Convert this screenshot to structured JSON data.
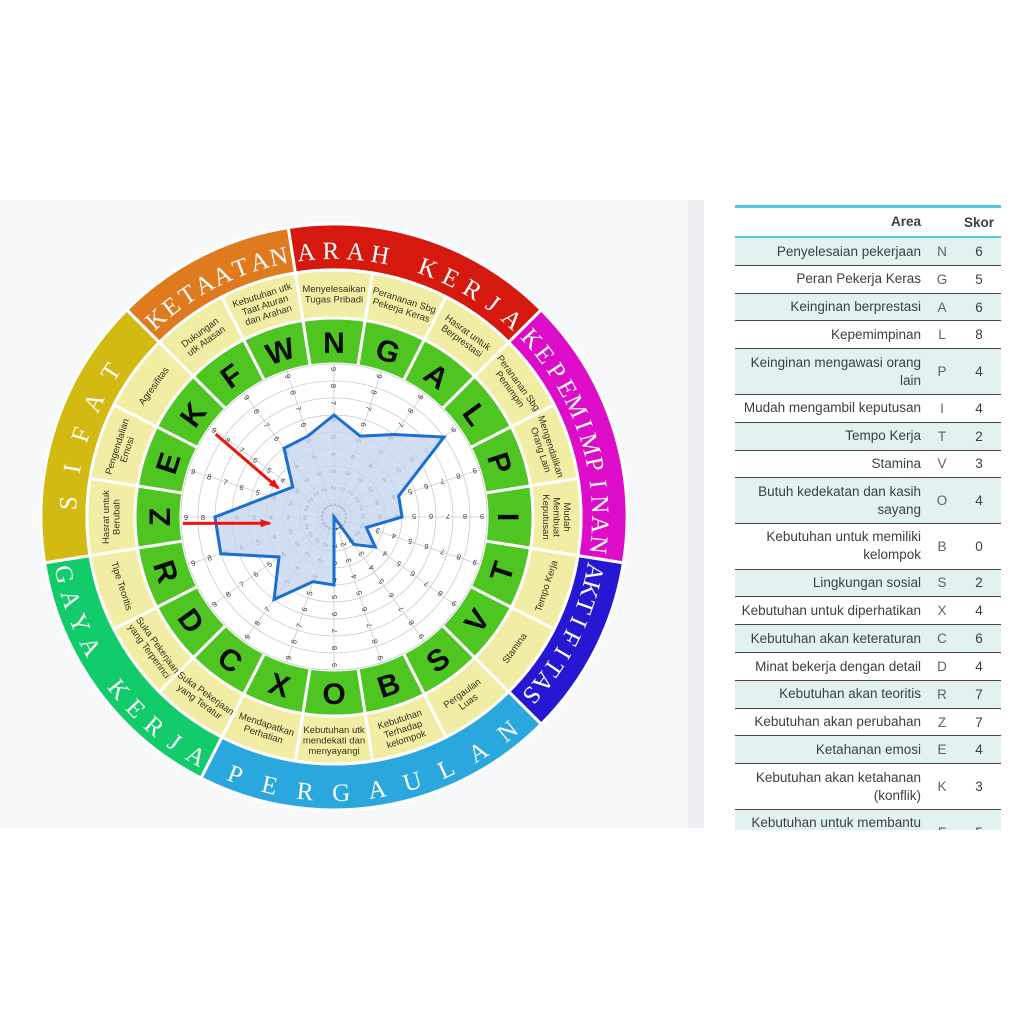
{
  "panel_colors": {
    "page_bg": "#ffffff",
    "left_panel_bg": "#F7F8FA",
    "divider_bg": "#EDEFF2",
    "right_panel_bg": "#ffffff"
  },
  "chart_data": {
    "type": "radar",
    "layout": "papi-kostick-wheel",
    "scale": [
      0,
      9
    ],
    "rings": [
      1,
      2,
      3,
      4,
      5,
      6,
      7,
      8,
      9
    ],
    "grid": true,
    "colors": {
      "polygon_stroke": "#1B6ED2",
      "polygon_fill": "rgba(197,214,240,0.78)",
      "grid_line": "#C7CCD4",
      "digit": "#3B3B3B",
      "label_cell": "#F1EDA4",
      "letter_cell": "#4FC522",
      "arrow": "#EE130B",
      "cell_gap": "#ffffff"
    },
    "groups": [
      {
        "name": "ARAH KERJA",
        "color": "#D6190E",
        "flip": false
      },
      {
        "name": "KEPEMIMPINAN",
        "color": "#DC0CC8",
        "flip": false
      },
      {
        "name": "AKTIFITAS",
        "color": "#2517D2",
        "flip": false
      },
      {
        "name": "PERGAULAN",
        "color": "#2AA7DD",
        "flip": true
      },
      {
        "name": "GAYA KERJA",
        "color": "#12CB6B",
        "flip": true
      },
      {
        "name": "SIFAT",
        "color": "#D2BA12",
        "flip": false
      },
      {
        "name": "KETAATAN",
        "color": "#DF7A1E",
        "flip": false
      }
    ],
    "axes": [
      {
        "letter": "N",
        "label": "Menyelesaikan Tugas Pribadi",
        "lines": [
          "Menyelesaikan",
          "Tugas Pribadi"
        ],
        "group": 0,
        "value": 6
      },
      {
        "letter": "G",
        "label": "Perananan Sbg Pekerja Keras",
        "lines": [
          "Perananan Sbg",
          "Pekerja Keras"
        ],
        "group": 0,
        "value": 5
      },
      {
        "letter": "A",
        "label": "Hasrat untuk Berprestasi",
        "lines": [
          "Hasrat untuk",
          "Berprestasi"
        ],
        "group": 0,
        "value": 6
      },
      {
        "letter": "L",
        "label": "Perananan Sbg Pemimpin",
        "lines": [
          "Perananan Sbg",
          "Pemimpin"
        ],
        "group": 1,
        "value": 8
      },
      {
        "letter": "P",
        "label": "Mengendalikan Orang Lain",
        "lines": [
          "Mengendalikan",
          "Orang Lain"
        ],
        "group": 1,
        "value": 4
      },
      {
        "letter": "I",
        "label": "Mudah Membuat Keputusan",
        "lines": [
          "Mudah",
          "Membuat",
          "Keputusan"
        ],
        "group": 1,
        "value": 4
      },
      {
        "letter": "T",
        "label": "Tempo Kerja",
        "lines": [
          "Tempo Kerja"
        ],
        "group": 2,
        "value": 2
      },
      {
        "letter": "V",
        "label": "Stamina",
        "lines": [
          "Stamina"
        ],
        "group": 2,
        "value": 3
      },
      {
        "letter": "S",
        "label": "Pergaulan Luas",
        "lines": [
          "Pergaulan",
          "Luas"
        ],
        "group": 3,
        "value": 2
      },
      {
        "letter": "B",
        "label": "Kebutuhan Terhadap kelompok",
        "lines": [
          "Kebutuhan",
          "Terhadap",
          "kelompok"
        ],
        "group": 3,
        "value": 0
      },
      {
        "letter": "O",
        "label": "Kebutuhan utk mendekati dan menyayangi",
        "lines": [
          "Kebutuhan utk",
          "mendekati dan",
          "menyayangi"
        ],
        "group": 3,
        "value": 4
      },
      {
        "letter": "X",
        "label": "Mendapatkan Perhatian",
        "lines": [
          "Mendapatkan",
          "Perhatian"
        ],
        "group": 3,
        "value": 4
      },
      {
        "letter": "C",
        "label": "Suka Pekerjaan yang Teratur",
        "lines": [
          "Suka Pekerjaan",
          "yang Teratur"
        ],
        "group": 4,
        "value": 6
      },
      {
        "letter": "D",
        "label": "Suka Pekerjaan yang Terperinci",
        "lines": [
          "Suka Pekerjaan",
          "yang Terperinci"
        ],
        "group": 4,
        "value": 4
      },
      {
        "letter": "R",
        "label": "Tipe Teoritis",
        "lines": [
          "Tipe Teoritis"
        ],
        "group": 4,
        "value": 7
      },
      {
        "letter": "Z",
        "label": "Hasrat untuk Berubah",
        "lines": [
          "Hasrat untuk",
          "Berubah"
        ],
        "group": 5,
        "value": 7
      },
      {
        "letter": "E",
        "label": "Pengendalian Emosi",
        "lines": [
          "Pengendalian",
          "Emosi"
        ],
        "group": 5,
        "value": 4
      },
      {
        "letter": "K",
        "label": "Agresifitas",
        "lines": [
          "Agresifitas"
        ],
        "group": 5,
        "value": 3
      },
      {
        "letter": "F",
        "label": "Dukungan utk Atasan",
        "lines": [
          "Dukungan",
          "utk Atasan"
        ],
        "group": 6,
        "value": 5
      },
      {
        "letter": "W",
        "label": "Kebutuhan utk Taat Aturan dan Arahan",
        "lines": [
          "Kebutuhan utk",
          "Taat Aturan",
          "dan Arahan"
        ],
        "group": 6,
        "value": 5
      }
    ],
    "arrows": [
      {
        "name": "red-arrow-E",
        "from": {
          "r": 8.5,
          "a": 305
        },
        "to": {
          "r": 3.7,
          "a": 297.5
        }
      },
      {
        "name": "red-arrow-Z",
        "from": {
          "r": 8.9,
          "a": 267.6
        },
        "to": {
          "r": 3.8,
          "a": 264.5
        }
      }
    ]
  },
  "table": {
    "headers": {
      "area": "Area",
      "skor": "Skor"
    },
    "rows": [
      {
        "area": "Penyelesaian pekerjaan",
        "code": "N",
        "skor": "6"
      },
      {
        "area": "Peran Pekerja Keras",
        "code": "G",
        "skor": "5"
      },
      {
        "area": "Keinginan berprestasi",
        "code": "A",
        "skor": "6"
      },
      {
        "area": "Kepemimpinan",
        "code": "L",
        "skor": "8"
      },
      {
        "area": "Keinginan mengawasi orang lain",
        "code": "P",
        "skor": "4"
      },
      {
        "area": "Mudah mengambil keputusan",
        "code": "I",
        "skor": "4"
      },
      {
        "area": "Tempo Kerja",
        "code": "T",
        "skor": "2"
      },
      {
        "area": "Stamina",
        "code": "V",
        "skor": "3"
      },
      {
        "area": "Butuh kedekatan dan kasih sayang",
        "code": "O",
        "skor": "4"
      },
      {
        "area": "Kebutuhan untuk memiliki kelompok",
        "code": "B",
        "skor": "0"
      },
      {
        "area": "Lingkungan sosial",
        "code": "S",
        "skor": "2"
      },
      {
        "area": "Kebutuhan untuk diperhatikan",
        "code": "X",
        "skor": "4"
      },
      {
        "area": "Kebutuhan akan keteraturan",
        "code": "C",
        "skor": "6"
      },
      {
        "area": "Minat bekerja dengan detail",
        "code": "D",
        "skor": "4"
      },
      {
        "area": "Kebutuhan akan teoritis",
        "code": "R",
        "skor": "7"
      },
      {
        "area": "Kebutuhan akan perubahan",
        "code": "Z",
        "skor": "7"
      },
      {
        "area": "Ketahanan emosi",
        "code": "E",
        "skor": "4"
      },
      {
        "area": "Kebutuhan akan ketahanan (konflik)",
        "code": "K",
        "skor": "3"
      },
      {
        "area": "Kebutuhan untuk membantu atasan",
        "code": "F",
        "skor": "5"
      }
    ]
  }
}
